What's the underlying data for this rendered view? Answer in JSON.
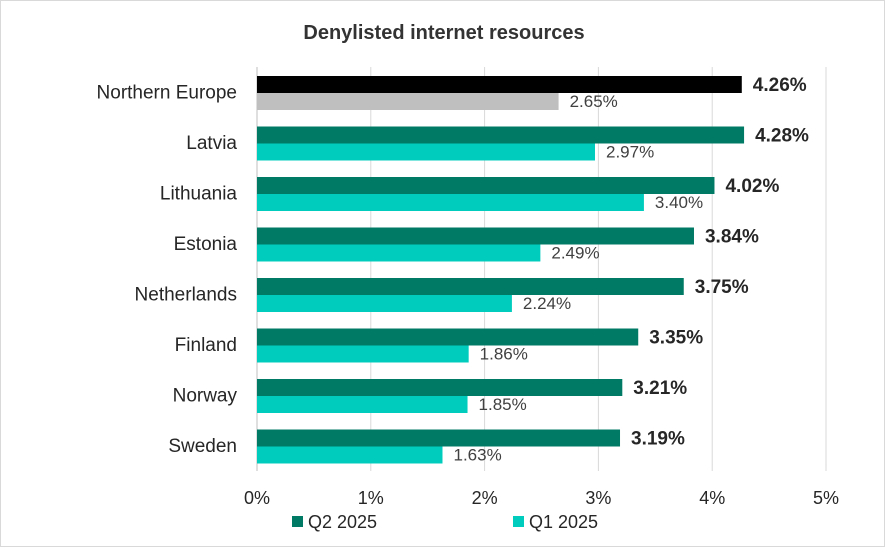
{
  "chart_data": {
    "type": "bar",
    "orientation": "horizontal",
    "title": "Denylisted internet resources",
    "categories": [
      "Northern Europe",
      "Latvia",
      "Lithuania",
      "Estonia",
      "Netherlands",
      "Finland",
      "Norway",
      "Sweden"
    ],
    "series": [
      {
        "name": "Q2 2025",
        "values": [
          4.26,
          4.28,
          4.02,
          3.84,
          3.75,
          3.35,
          3.21,
          3.19
        ],
        "labels": [
          "4.26%",
          "4.28%",
          "4.02%",
          "3.84%",
          "3.75%",
          "3.35%",
          "3.21%",
          "3.19%"
        ],
        "color": "#007a65",
        "highlight_color": "#000000"
      },
      {
        "name": "Q1 2025",
        "values": [
          2.65,
          2.97,
          3.4,
          2.49,
          2.24,
          1.86,
          1.85,
          1.63
        ],
        "labels": [
          "2.65%",
          "2.97%",
          "3.40%",
          "2.49%",
          "2.24%",
          "1.86%",
          "1.85%",
          "1.63%"
        ],
        "color": "#00ccbe",
        "highlight_color": "#bfbfbf"
      }
    ],
    "xlim": [
      0,
      5
    ],
    "x_ticks": [
      "0%",
      "1%",
      "2%",
      "3%",
      "4%",
      "5%"
    ],
    "grid": true,
    "legend_position": "bottom",
    "highlight_category": "Northern Europe"
  }
}
